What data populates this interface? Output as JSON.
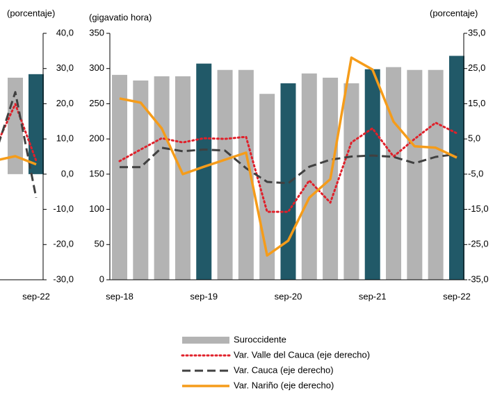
{
  "chart_data": [
    {
      "type": "combo",
      "y2_label": "(porcentaje)",
      "categories": [
        null,
        null,
        "sep-22"
      ],
      "y2lim": [
        -30,
        40
      ],
      "y2ticks": [
        {
          "value": -30,
          "label": "-30,0"
        },
        {
          "value": -20,
          "label": "-20,0"
        },
        {
          "value": -10,
          "label": "-10,0"
        },
        {
          "value": 0,
          "label": "0,0"
        },
        {
          "value": 10,
          "label": "10,0"
        },
        {
          "value": 20,
          "label": "20,0"
        },
        {
          "value": 30,
          "label": "30,0"
        },
        {
          "value": 40,
          "label": "40,0"
        }
      ],
      "series": [
        {
          "kind": "bar",
          "axis": "y2",
          "colors": [
            "#b3b3b3",
            "#b3b3b3",
            "#215968"
          ],
          "values": [
            null,
            27.4,
            28.4
          ]
        },
        {
          "kind": "line",
          "style": "dotted",
          "axis": "y2",
          "color": "#e0202a",
          "values": [
            7,
            19.9,
            3.8
          ]
        },
        {
          "kind": "line",
          "style": "dashed",
          "axis": "y2",
          "color": "#404040",
          "values": [
            5,
            23.3,
            -6.7
          ]
        },
        {
          "kind": "line",
          "style": "solid",
          "axis": "y2",
          "color": "#f59c1a",
          "values": [
            3.8,
            5.1,
            2.8
          ]
        }
      ]
    },
    {
      "type": "combo",
      "y_label": "(gigavatio hora)",
      "y2_label": "(porcentaje)",
      "categories": [
        "sep-18",
        null,
        null,
        null,
        "sep-19",
        null,
        null,
        null,
        "sep-20",
        null,
        null,
        null,
        "sep-21",
        null,
        null,
        null,
        "sep-22"
      ],
      "ylim": [
        0,
        350
      ],
      "yticks": [
        0,
        50,
        100,
        150,
        200,
        250,
        300,
        350
      ],
      "y2lim": [
        -35,
        35
      ],
      "y2ticks": [
        {
          "value": -35,
          "label": "-35,0"
        },
        {
          "value": -25,
          "label": "-25,0"
        },
        {
          "value": -15,
          "label": "-15,0"
        },
        {
          "value": -5,
          "label": "-5,0"
        },
        {
          "value": 5,
          "label": "5,0"
        },
        {
          "value": 15,
          "label": "15,0"
        },
        {
          "value": 25,
          "label": "25,0"
        },
        {
          "value": 35,
          "label": "35,0"
        }
      ],
      "legend": "bottom",
      "series": [
        {
          "name": "Suroccidente",
          "kind": "bar",
          "axis": "y",
          "color": "#b3b3b3",
          "colors": [
            "#b3b3b3",
            "#b3b3b3",
            "#b3b3b3",
            "#b3b3b3",
            "#215968",
            "#b3b3b3",
            "#b3b3b3",
            "#b3b3b3",
            "#215968",
            "#b3b3b3",
            "#b3b3b3",
            "#b3b3b3",
            "#215968",
            "#b3b3b3",
            "#b3b3b3",
            "#b3b3b3",
            "#215968"
          ],
          "values": [
            291,
            283,
            289,
            289,
            307,
            298,
            298,
            264,
            279,
            293,
            287,
            279,
            299,
            302,
            298,
            298,
            318
          ]
        },
        {
          "name": "Var. Valle del Cauca (eje derecho)",
          "kind": "line",
          "style": "dotted",
          "axis": "y2",
          "color": "#e0202a",
          "values": [
            -1.3,
            2,
            5.2,
            4,
            5.2,
            5,
            5.6,
            -15.7,
            -15.7,
            -6.8,
            -13.1,
            4,
            8,
            0,
            5,
            9.6,
            6.6
          ]
        },
        {
          "name": "Var. Cauca (eje derecho)",
          "kind": "line",
          "style": "dashed",
          "axis": "y2",
          "color": "#404040",
          "values": [
            -3,
            -3,
            2.5,
            1.5,
            2,
            1.7,
            -3.3,
            -7.2,
            -7.6,
            -2.9,
            -0.9,
            0,
            0.3,
            -0.1,
            -1.9,
            -0.1,
            0.7
          ]
        },
        {
          "name": "Var. Nariño (eje derecho)",
          "kind": "line",
          "style": "solid",
          "axis": "y2",
          "color": "#f59c1a",
          "values": [
            16.5,
            15.3,
            8,
            -5,
            -2.9,
            -0.9,
            1.1,
            -28.1,
            -23.9,
            -11.7,
            -6.4,
            28.1,
            24.7,
            9.9,
            2.9,
            2.5,
            -0.3
          ]
        }
      ]
    }
  ]
}
